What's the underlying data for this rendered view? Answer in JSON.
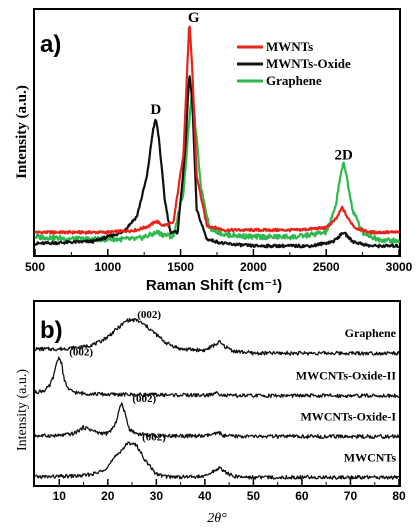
{
  "chart_data": [
    {
      "type": "line",
      "panel_label": "a)",
      "xlabel": "Raman Shift (cm⁻¹)",
      "ylabel": "Intensity (a.u.)",
      "xlim": [
        500,
        3000
      ],
      "xticks": [
        500,
        1000,
        1500,
        2000,
        2500,
        3000
      ],
      "ylim": [
        0,
        1.08
      ],
      "grid": false,
      "legend_position": "top-right",
      "annotations": [
        {
          "text": "D",
          "x": 1330,
          "y": 0.595
        },
        {
          "text": "G",
          "x": 1590,
          "y": 1.0
        },
        {
          "text": "2D",
          "x": 2620,
          "y": 0.395
        }
      ],
      "series": [
        {
          "name": "MWNTs",
          "color": "#e8231a",
          "x": [
            500,
            1000,
            1200,
            1290,
            1330,
            1380,
            1450,
            1520,
            1560,
            1580,
            1610,
            1680,
            1800,
            2000,
            2300,
            2500,
            2570,
            2610,
            2650,
            2700,
            2800,
            3000
          ],
          "y": [
            0.1,
            0.1,
            0.11,
            0.13,
            0.15,
            0.13,
            0.14,
            0.45,
            1.03,
            0.82,
            0.35,
            0.13,
            0.11,
            0.11,
            0.11,
            0.12,
            0.16,
            0.21,
            0.16,
            0.12,
            0.1,
            0.1
          ]
        },
        {
          "name": "MWNTs-Oxide",
          "color": "#111111",
          "x": [
            500,
            900,
            1100,
            1200,
            1270,
            1310,
            1330,
            1350,
            1390,
            1430,
            1480,
            1530,
            1560,
            1580,
            1610,
            1680,
            1800,
            2000,
            2400,
            2550,
            2620,
            2680,
            2800,
            3000
          ],
          "y": [
            0.05,
            0.06,
            0.1,
            0.17,
            0.35,
            0.55,
            0.6,
            0.52,
            0.25,
            0.1,
            0.1,
            0.45,
            0.8,
            0.68,
            0.2,
            0.07,
            0.05,
            0.04,
            0.04,
            0.06,
            0.1,
            0.06,
            0.04,
            0.04
          ]
        },
        {
          "name": "Graphene",
          "color": "#2eb84e",
          "x": [
            500,
            800,
            1000,
            1200,
            1300,
            1340,
            1380,
            1450,
            1520,
            1560,
            1580,
            1600,
            1640,
            1700,
            1800,
            2000,
            2300,
            2500,
            2560,
            2600,
            2620,
            2640,
            2680,
            2750,
            2850,
            3000
          ],
          "y": [
            0.08,
            0.07,
            0.07,
            0.07,
            0.09,
            0.1,
            0.09,
            0.08,
            0.28,
            0.6,
            0.72,
            0.58,
            0.3,
            0.12,
            0.09,
            0.08,
            0.08,
            0.1,
            0.2,
            0.36,
            0.4,
            0.35,
            0.2,
            0.1,
            0.07,
            0.06
          ]
        }
      ]
    },
    {
      "type": "line",
      "panel_label": "b)",
      "xlabel": "2θ°",
      "ylabel": "Intensity (a.u.)",
      "xlim": [
        5,
        80
      ],
      "xticks": [
        10,
        20,
        30,
        40,
        50,
        60,
        70,
        80
      ],
      "ylim": [
        0,
        4
      ],
      "grid": false,
      "legend_position": "none",
      "series": [
        {
          "name": "Graphene",
          "color": "#111111",
          "x": [
            5,
            10,
            15,
            18,
            20,
            22,
            24,
            26,
            28,
            30,
            32,
            35,
            40,
            42,
            43,
            44,
            46,
            50,
            55,
            60,
            70,
            80
          ],
          "y": [
            3.15,
            3.15,
            3.2,
            3.3,
            3.45,
            3.65,
            3.85,
            3.85,
            3.7,
            3.5,
            3.3,
            3.15,
            3.12,
            3.25,
            3.32,
            3.22,
            3.1,
            3.05,
            3.05,
            3.05,
            3.05,
            3.05
          ],
          "peak_label": "(002)"
        },
        {
          "name": "MWCNTs-Oxide-II",
          "color": "#111111",
          "x": [
            5,
            7,
            8,
            9,
            9.5,
            10,
            10.5,
            11,
            12,
            14,
            20,
            30,
            40,
            42,
            42.5,
            43,
            44,
            50,
            60,
            70,
            80
          ],
          "y": [
            2.1,
            2.15,
            2.25,
            2.55,
            2.85,
            2.95,
            2.8,
            2.4,
            2.15,
            2.08,
            2.05,
            2.04,
            2.03,
            2.05,
            2.15,
            2.06,
            2.02,
            2.02,
            2.02,
            2.02,
            2.02
          ],
          "peak_label": "(002)"
        },
        {
          "name": "MWCNTs-Oxide-I",
          "color": "#111111",
          "x": [
            5,
            10,
            13,
            15,
            16,
            18,
            20,
            21.5,
            22.5,
            23,
            23.5,
            24.5,
            26,
            30,
            40,
            42.5,
            43,
            44,
            50,
            60,
            70,
            80
          ],
          "y": [
            1.05,
            1.05,
            1.1,
            1.25,
            1.22,
            1.12,
            1.1,
            1.3,
            1.75,
            1.82,
            1.6,
            1.2,
            1.1,
            1.05,
            1.04,
            1.1,
            1.12,
            1.04,
            1.03,
            1.03,
            1.03,
            1.03
          ],
          "peak_label": "(002)"
        },
        {
          "name": "MWCNTs",
          "color": "#111111",
          "x": [
            5,
            10,
            15,
            18,
            20,
            22,
            24,
            25,
            26,
            28,
            30,
            32,
            35,
            40,
            42,
            43,
            44,
            46,
            50,
            60,
            70,
            80
          ],
          "y": [
            0.05,
            0.06,
            0.08,
            0.15,
            0.3,
            0.6,
            0.85,
            0.88,
            0.8,
            0.4,
            0.12,
            0.06,
            0.05,
            0.06,
            0.2,
            0.28,
            0.18,
            0.06,
            0.04,
            0.04,
            0.04,
            0.04
          ],
          "peak_label": "(002)"
        }
      ]
    }
  ]
}
